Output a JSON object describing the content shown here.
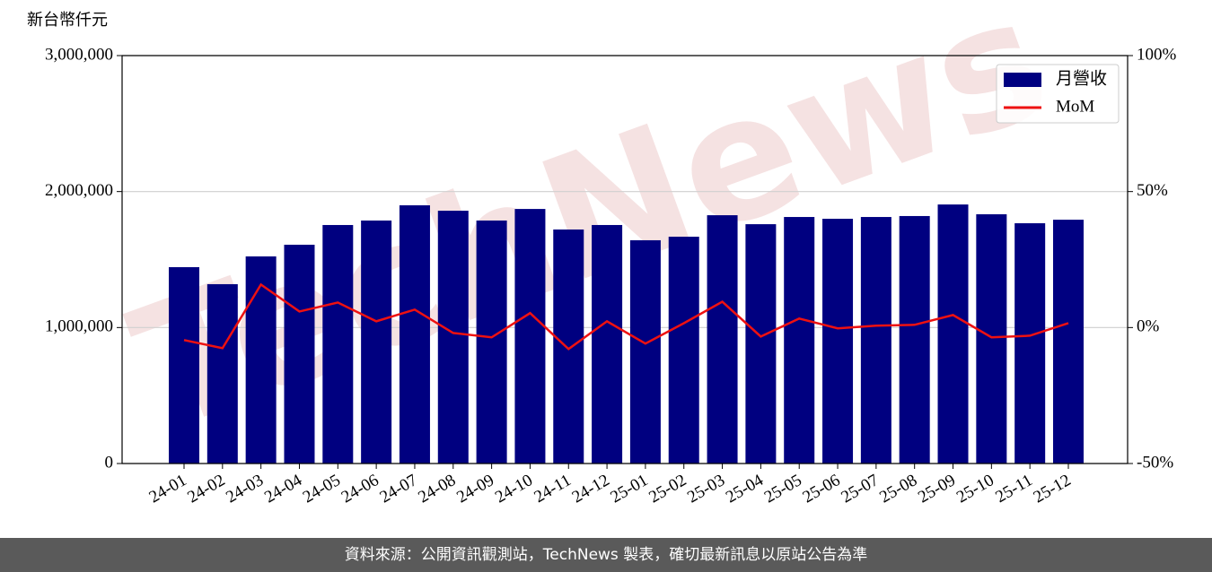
{
  "chart_data": {
    "type": "bar_line",
    "y_label": "新台幣仟元",
    "watermark": "TechNews",
    "footer": "資料來源：公開資訊觀測站，TechNews 製表，確切最新訊息以原站公告為準",
    "categories": [
      "24-01",
      "24-02",
      "24-03",
      "24-04",
      "24-05",
      "24-06",
      "24-07",
      "24-08",
      "24-09",
      "24-10",
      "24-11",
      "24-12",
      "25-01",
      "25-02",
      "25-03",
      "25-04",
      "25-05",
      "25-06",
      "25-07",
      "25-08",
      "25-09",
      "25-10",
      "25-11",
      "25-12"
    ],
    "series": [
      {
        "name": "月營收",
        "type": "bar",
        "color": "#000080",
        "values": [
          1444000,
          1319000,
          1523000,
          1609000,
          1754000,
          1787000,
          1899000,
          1859000,
          1787000,
          1872000,
          1721000,
          1754000,
          1642000,
          1668000,
          1826000,
          1760000,
          1813000,
          1800000,
          1813000,
          1820000,
          1905000,
          1833000,
          1767000,
          1793000
        ]
      },
      {
        "name": "MoM",
        "type": "line",
        "color": "#ee1111",
        "axis": "y2",
        "values": [
          -4.6,
          -7.6,
          15.8,
          5.9,
          9.2,
          2.3,
          6.6,
          -2.0,
          -3.6,
          5.3,
          -7.9,
          2.3,
          -5.9,
          1.6,
          9.5,
          -3.3,
          3.3,
          -0.3,
          0.7,
          1.0,
          4.6,
          -3.6,
          -3.0,
          1.6
        ]
      }
    ],
    "ylim": [
      0,
      3000000
    ],
    "yticks": [
      0,
      {
        "value": 1000000,
        "label": "1,000,000"
      },
      {
        "value": 2000000,
        "label": "2,000,000"
      },
      {
        "value": 3000000,
        "label": "3,000,000"
      }
    ],
    "y2lim": [
      -50,
      100
    ],
    "y2ticks": [
      {
        "value": -50,
        "label": "-50%"
      },
      {
        "value": 0,
        "label": "0%"
      },
      {
        "value": 50,
        "label": "50%"
      },
      {
        "value": 100,
        "label": "100%"
      }
    ],
    "grid": true,
    "legend": "upper right"
  }
}
